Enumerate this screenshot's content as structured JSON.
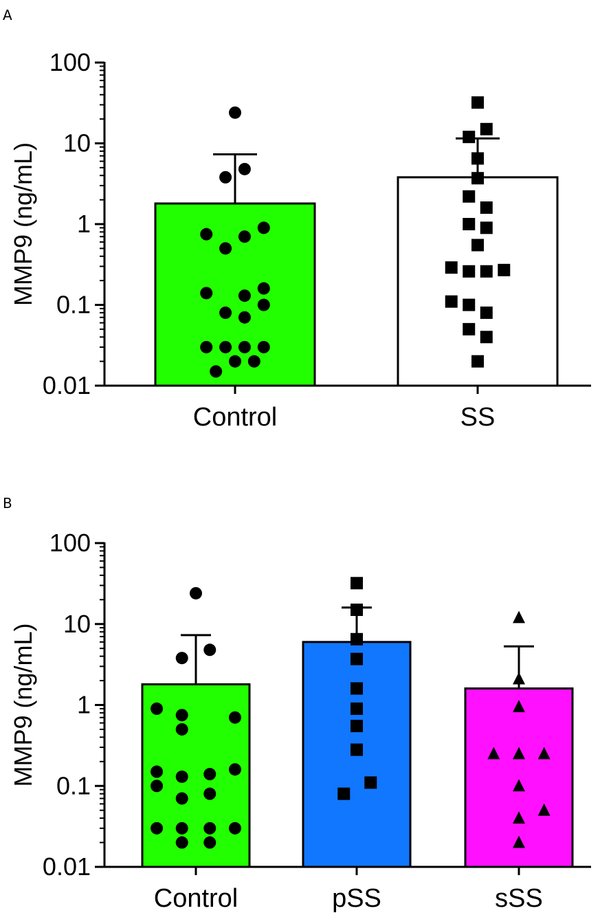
{
  "chart_data": [
    {
      "type": "bar",
      "panel_label": "A",
      "title": "",
      "xlabel": "",
      "ylabel": "MMP9 (ng/mL)",
      "yscale": "log",
      "ylim": [
        0.01,
        100
      ],
      "yticks": [
        "0.01",
        "0.1",
        "1",
        "10",
        "100"
      ],
      "categories": [
        "Control",
        "SS"
      ],
      "values": [
        1.8,
        3.8
      ],
      "error_upper": [
        7.3,
        11.5
      ],
      "bar_colors": [
        "#22ff00",
        "#ffffff"
      ],
      "marker_shapes": [
        "circle",
        "square"
      ],
      "points": [
        [
          {
            "x": 0.0,
            "y": 24
          },
          {
            "x": -0.12,
            "y": 3.8
          },
          {
            "x": 0.12,
            "y": 4.8
          },
          {
            "x": -0.36,
            "y": 0.75
          },
          {
            "x": 0.12,
            "y": 0.7
          },
          {
            "x": 0.36,
            "y": 0.9
          },
          {
            "x": -0.12,
            "y": 0.5
          },
          {
            "x": -0.36,
            "y": 0.14
          },
          {
            "x": 0.12,
            "y": 0.13
          },
          {
            "x": 0.36,
            "y": 0.16
          },
          {
            "x": 0.36,
            "y": 0.1
          },
          {
            "x": -0.12,
            "y": 0.08
          },
          {
            "x": 0.12,
            "y": 0.07
          },
          {
            "x": -0.36,
            "y": 0.03
          },
          {
            "x": -0.12,
            "y": 0.03
          },
          {
            "x": 0.12,
            "y": 0.03
          },
          {
            "x": 0.36,
            "y": 0.03
          },
          {
            "x": 0.0,
            "y": 0.02
          },
          {
            "x": 0.24,
            "y": 0.02
          },
          {
            "x": -0.24,
            "y": 0.015
          }
        ],
        [
          {
            "x": 0.0,
            "y": 32
          },
          {
            "x": 0.11,
            "y": 15
          },
          {
            "x": -0.11,
            "y": 12
          },
          {
            "x": 0.0,
            "y": 6.5
          },
          {
            "x": 0.0,
            "y": 3.7
          },
          {
            "x": -0.11,
            "y": 2.2
          },
          {
            "x": 0.11,
            "y": 1.6
          },
          {
            "x": -0.11,
            "y": 1.0
          },
          {
            "x": 0.11,
            "y": 0.9
          },
          {
            "x": 0.0,
            "y": 0.55
          },
          {
            "x": -0.33,
            "y": 0.29
          },
          {
            "x": -0.11,
            "y": 0.26
          },
          {
            "x": 0.11,
            "y": 0.26
          },
          {
            "x": 0.33,
            "y": 0.27
          },
          {
            "x": -0.33,
            "y": 0.11
          },
          {
            "x": -0.11,
            "y": 0.1
          },
          {
            "x": 0.11,
            "y": 0.08
          },
          {
            "x": -0.11,
            "y": 0.05
          },
          {
            "x": 0.11,
            "y": 0.04
          },
          {
            "x": 0.0,
            "y": 0.02
          }
        ]
      ]
    },
    {
      "type": "bar",
      "panel_label": "B",
      "title": "",
      "xlabel": "",
      "ylabel": "MMP9 (ng/mL)",
      "yscale": "log",
      "ylim": [
        0.01,
        100
      ],
      "yticks": [
        "0.01",
        "0.1",
        "1",
        "10",
        "100"
      ],
      "categories": [
        "Control",
        "pSS",
        "sSS"
      ],
      "values": [
        1.8,
        6.0,
        1.6
      ],
      "error_upper": [
        7.3,
        16,
        5.3
      ],
      "bar_colors": [
        "#22ff00",
        "#1177ff",
        "#ff11ff"
      ],
      "marker_shapes": [
        "circle",
        "square",
        "triangle"
      ],
      "points": [
        [
          {
            "x": 0.0,
            "y": 24
          },
          {
            "x": -0.26,
            "y": 3.8
          },
          {
            "x": 0.26,
            "y": 4.8
          },
          {
            "x": -0.73,
            "y": 0.9
          },
          {
            "x": -0.26,
            "y": 0.75
          },
          {
            "x": 0.73,
            "y": 0.7
          },
          {
            "x": -0.26,
            "y": 0.5
          },
          {
            "x": -0.73,
            "y": 0.15
          },
          {
            "x": -0.26,
            "y": 0.13
          },
          {
            "x": 0.26,
            "y": 0.14
          },
          {
            "x": 0.73,
            "y": 0.16
          },
          {
            "x": -0.73,
            "y": 0.1
          },
          {
            "x": -0.26,
            "y": 0.07
          },
          {
            "x": 0.26,
            "y": 0.08
          },
          {
            "x": -0.73,
            "y": 0.03
          },
          {
            "x": -0.26,
            "y": 0.03
          },
          {
            "x": 0.26,
            "y": 0.03
          },
          {
            "x": 0.73,
            "y": 0.03
          },
          {
            "x": -0.26,
            "y": 0.02
          },
          {
            "x": 0.26,
            "y": 0.02
          }
        ],
        [
          {
            "x": 0.0,
            "y": 32
          },
          {
            "x": 0.0,
            "y": 15
          },
          {
            "x": 0.0,
            "y": 6.5
          },
          {
            "x": 0.0,
            "y": 3.7
          },
          {
            "x": 0.0,
            "y": 1.6
          },
          {
            "x": 0.0,
            "y": 0.9
          },
          {
            "x": 0.0,
            "y": 0.55
          },
          {
            "x": 0.0,
            "y": 0.28
          },
          {
            "x": 0.26,
            "y": 0.11
          },
          {
            "x": -0.24,
            "y": 0.08
          }
        ],
        [
          {
            "x": 0.0,
            "y": 12
          },
          {
            "x": 0.0,
            "y": 2.1
          },
          {
            "x": 0.0,
            "y": 0.95
          },
          {
            "x": -0.47,
            "y": 0.25
          },
          {
            "x": 0.0,
            "y": 0.25
          },
          {
            "x": 0.47,
            "y": 0.25
          },
          {
            "x": 0.0,
            "y": 0.1
          },
          {
            "x": 0.47,
            "y": 0.05
          },
          {
            "x": 0.0,
            "y": 0.04
          },
          {
            "x": 0.0,
            "y": 0.02
          }
        ]
      ]
    }
  ]
}
